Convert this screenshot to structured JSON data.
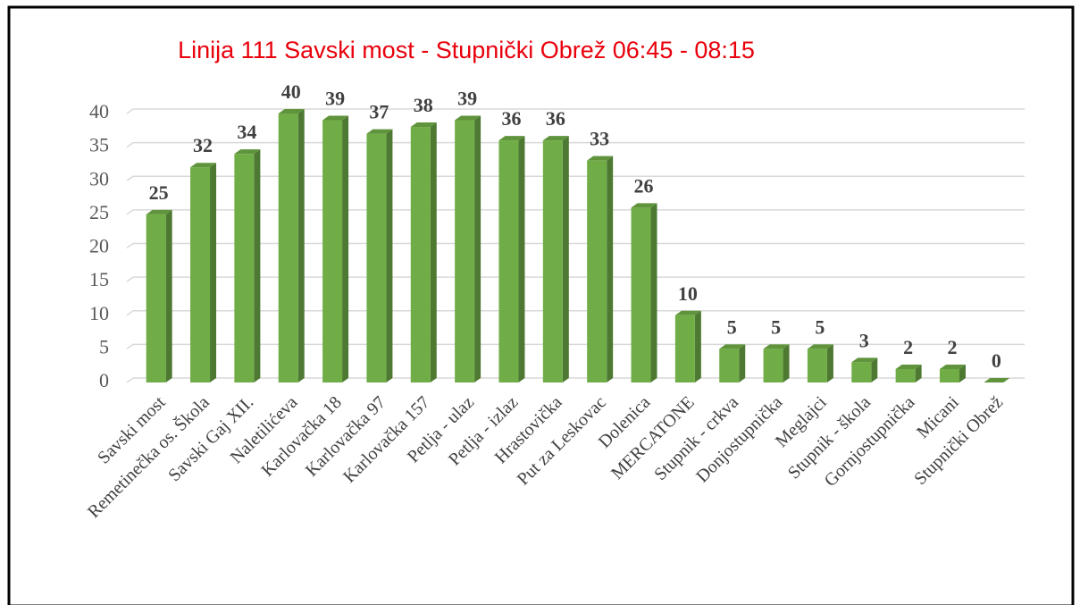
{
  "chart_data": {
    "type": "bar",
    "title": "Linija 111 Savski most - Stupnički Obrež 06:45 - 08:15",
    "categories": [
      "Savski most",
      "Remetinečka os. Škola",
      "Savski Gaj XII.",
      "Naletilićeva",
      "Karlovačka 18",
      "Karlovačka 97",
      "Karlovačka 157",
      "Petlja - ulaz",
      "Petlja - izlaz",
      "Hrastovička",
      "Put za Leskovac",
      "Dolenica",
      "MERCATONE",
      "Stupnik - crkva",
      "Donjostupnička",
      "Meglajci",
      "Stupnik - škola",
      "Gornjostupnička",
      "Micani",
      "Stupnički Obrež"
    ],
    "values": [
      25,
      32,
      34,
      40,
      39,
      37,
      38,
      39,
      36,
      36,
      33,
      26,
      10,
      5,
      5,
      5,
      3,
      2,
      2,
      0
    ],
    "color": "#70ad47",
    "ylim": [
      0,
      40
    ],
    "yticks": [
      0,
      5,
      10,
      15,
      20,
      25,
      30,
      35,
      40
    ],
    "grid": true
  }
}
